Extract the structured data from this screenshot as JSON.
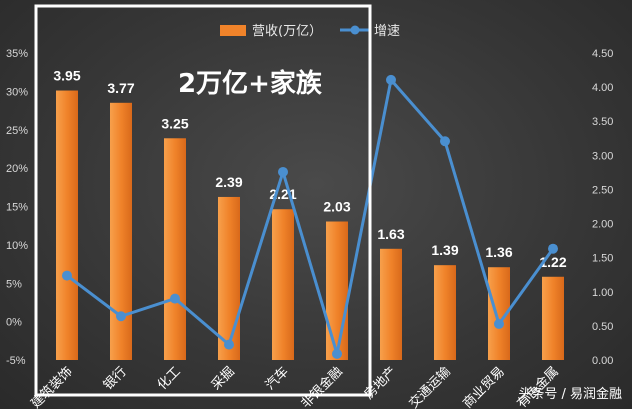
{
  "chart_data": {
    "type": "bar",
    "categories": [
      "建筑装饰",
      "银行",
      "化工",
      "采掘",
      "汽车",
      "非银金融",
      "房地产",
      "交通运输",
      "商业贸易",
      "有色金属"
    ],
    "series": [
      {
        "name": "营收(万亿）",
        "type": "bar",
        "axis": "right",
        "color": "#f0832a",
        "values": [
          3.95,
          3.77,
          3.25,
          2.39,
          2.21,
          2.03,
          1.63,
          1.39,
          1.36,
          1.22
        ],
        "labels": [
          "3.95",
          "3.77",
          "3.25",
          "2.39",
          "2.21",
          "2.03",
          "1.63",
          "1.39",
          "1.36",
          "1.22"
        ]
      },
      {
        "name": "增速",
        "type": "line",
        "axis": "left",
        "color": "#4a8fd0",
        "values": [
          6.0,
          0.7,
          3.0,
          -3.0,
          19.5,
          -4.2,
          31.5,
          23.5,
          -0.3,
          9.5
        ]
      }
    ],
    "y_left": {
      "ticks": [
        "35%",
        "30%",
        "25%",
        "20%",
        "15%",
        "10%",
        "5%",
        "0%",
        "-5%"
      ],
      "min": -5,
      "max": 35
    },
    "y_right": {
      "ticks": [
        "4.50",
        "4.00",
        "3.50",
        "3.00",
        "2.50",
        "2.00",
        "1.50",
        "1.00",
        "0.50",
        "0.00"
      ],
      "min": 0,
      "max": 4.5
    },
    "grid": false,
    "legend_position": "top-center",
    "annotation": "2万亿+家族",
    "highlight_box": "white rectangle around 建筑装饰–非银金融"
  },
  "watermark": "头条号 / 易润金融"
}
